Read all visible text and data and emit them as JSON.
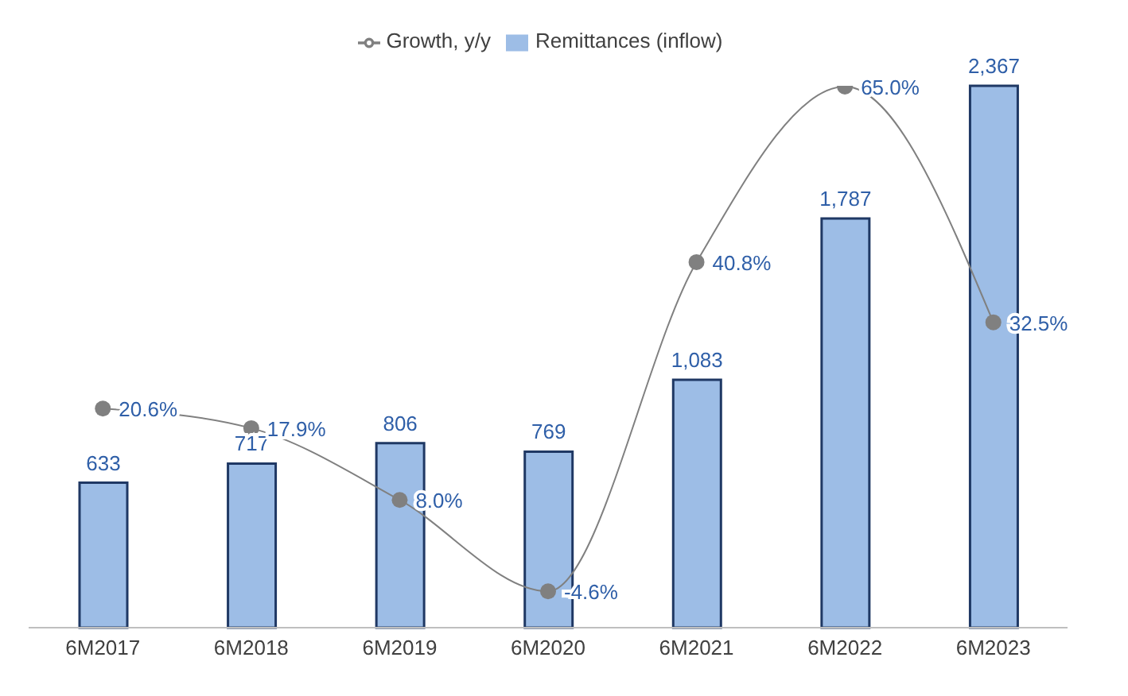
{
  "chart_data": {
    "type": "bar",
    "categories": [
      "6M2017",
      "6M2018",
      "6M2019",
      "6M2020",
      "6M2021",
      "6M2022",
      "6M2023"
    ],
    "series": [
      {
        "name": "Remittances (inflow)",
        "color": "#9dbde6",
        "values": [
          633,
          717,
          806,
          769,
          1083,
          1787,
          2367
        ],
        "value_labels": [
          "633",
          "717",
          "806",
          "769",
          "1,083",
          "1,787",
          "2,367"
        ]
      },
      {
        "name": "Growth, y/y",
        "type": "line",
        "axis": "y2",
        "color": "#808080",
        "values": [
          20.6,
          17.9,
          8.0,
          -4.6,
          40.8,
          65.0,
          32.5
        ],
        "value_labels": [
          "20.6%",
          "17.9%",
          "8.0%",
          "-4.6%",
          "40.8%",
          "65.0%",
          "32.5%"
        ]
      }
    ],
    "legend": "top",
    "marker": "circle",
    "line_style": "solid",
    "tick_labels": "x"
  }
}
